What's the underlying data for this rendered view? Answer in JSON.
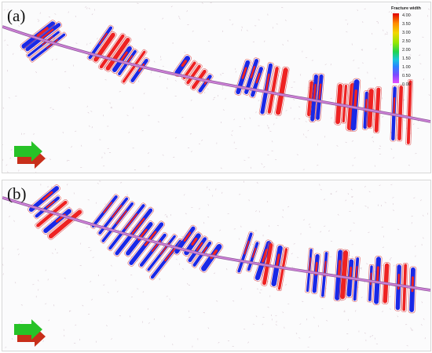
{
  "panels": [
    {
      "label": "(a)"
    },
    {
      "label": "(b)"
    }
  ],
  "legend": {
    "title": "Fracture width",
    "ticks": [
      "4.00",
      "3.50",
      "3.00",
      "2.50",
      "2.00",
      "1.50",
      "1.00",
      "0.50",
      "0.00"
    ]
  },
  "colors": {
    "wellbore": "#cc7fd6",
    "fracture_primary": "#1a28e6",
    "fracture_secondary": "#ee2222",
    "arrow_top": "#27c227",
    "arrow_bottom": "#c82f1a"
  },
  "icons": [
    "direction-arrow-icon"
  ]
}
